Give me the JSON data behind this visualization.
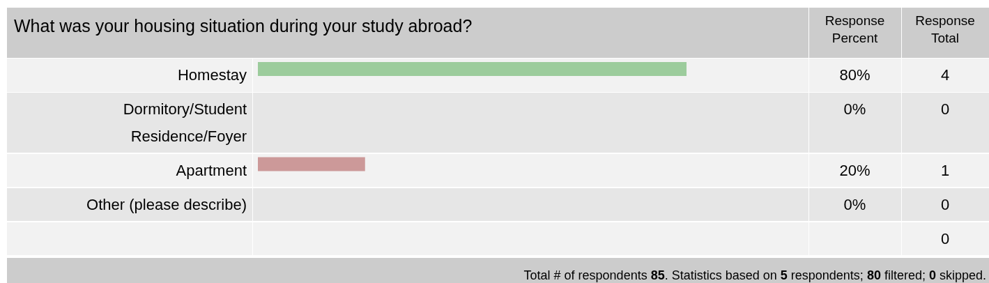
{
  "chart_data": {
    "type": "bar",
    "orientation": "horizontal",
    "title": "What was your housing situation during your study abroad?",
    "categories": [
      "Homestay",
      "Dormitory/Student Residence/Foyer",
      "Apartment",
      "Other (please describe)",
      null
    ],
    "values": [
      80,
      0,
      20,
      0,
      null
    ],
    "colors": [
      "#9ccc9c",
      null,
      "#cc9999",
      null,
      null
    ],
    "value_labels": [
      "80%",
      "0%",
      "20%",
      "0%",
      null
    ],
    "annotations": [
      "Response Percent",
      "Response Total",
      "4",
      "0",
      "1",
      "0",
      "0",
      "Total # of respondents 85. Statistics based on 5 respondents; 80 filtered; 0 skipped."
    ]
  }
}
